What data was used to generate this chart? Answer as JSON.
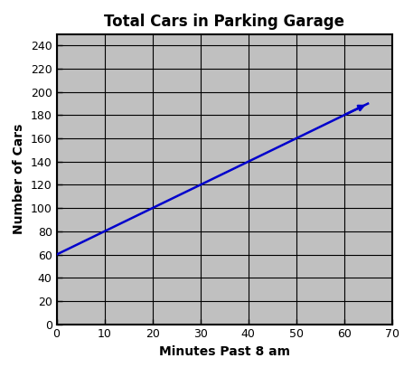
{
  "title": "Total Cars in Parking Garage",
  "xlabel": "Minutes Past 8 am",
  "ylabel": "Number of Cars",
  "x_data": [
    0,
    65
  ],
  "y_data": [
    60,
    190
  ],
  "line_color": "#0000CC",
  "line_width": 1.8,
  "xlim": [
    0,
    70
  ],
  "ylim": [
    0,
    250
  ],
  "xticks": [
    0,
    10,
    20,
    30,
    40,
    50,
    60,
    70
  ],
  "yticks": [
    0,
    20,
    40,
    60,
    80,
    100,
    120,
    140,
    160,
    180,
    200,
    220,
    240
  ],
  "background_color": "#C0C0C0",
  "title_fontsize": 12,
  "label_fontsize": 10,
  "tick_fontsize": 9,
  "grid_color": "#000000",
  "grid_linewidth": 0.8,
  "spine_linewidth": 1.5
}
